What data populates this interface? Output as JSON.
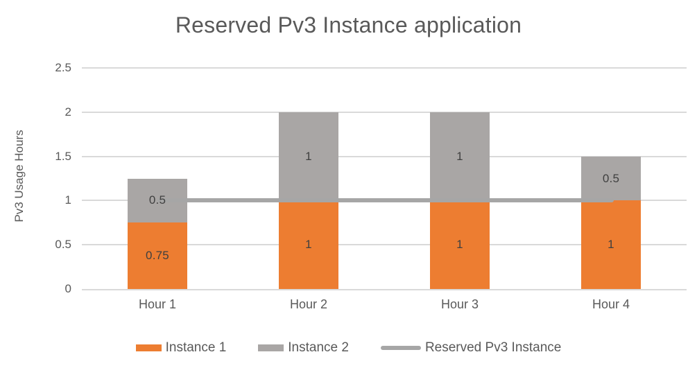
{
  "chart_data": {
    "type": "bar",
    "subtype": "stacked-column-with-line-overlay",
    "title": "Reserved Pv3 Instance application",
    "ylabel": "Pv3 Usage Hours",
    "xlabel": "",
    "categories": [
      "Hour 1",
      "Hour 2",
      "Hour 3",
      "Hour 4"
    ],
    "series": [
      {
        "name": "Instance 1",
        "type": "bar",
        "color": "#ED7D31",
        "values": [
          0.75,
          1,
          1,
          1
        ],
        "data_labels": [
          "0.75",
          "1",
          "1",
          "1"
        ]
      },
      {
        "name": "Instance 2",
        "type": "bar",
        "color": "#A9A6A5",
        "values": [
          0.5,
          1,
          1,
          0.5
        ],
        "data_labels": [
          "0.5",
          "1",
          "1",
          "0.5"
        ]
      },
      {
        "name": "Reserved Pv3 Instance",
        "type": "line",
        "color": "#A6A6A6",
        "values": [
          1,
          1,
          1,
          1
        ],
        "data_labels": [
          "",
          "",
          "",
          ""
        ]
      }
    ],
    "ylim": [
      0,
      2.5
    ],
    "yticks": [
      0,
      0.5,
      1,
      1.5,
      2,
      2.5
    ],
    "grid": true,
    "legend_position": "bottom",
    "colors": {
      "gridline": "#D9D9D9",
      "axis_text": "#595959",
      "data_label_text": "#3F3F3F",
      "title_text": "#595959"
    }
  }
}
